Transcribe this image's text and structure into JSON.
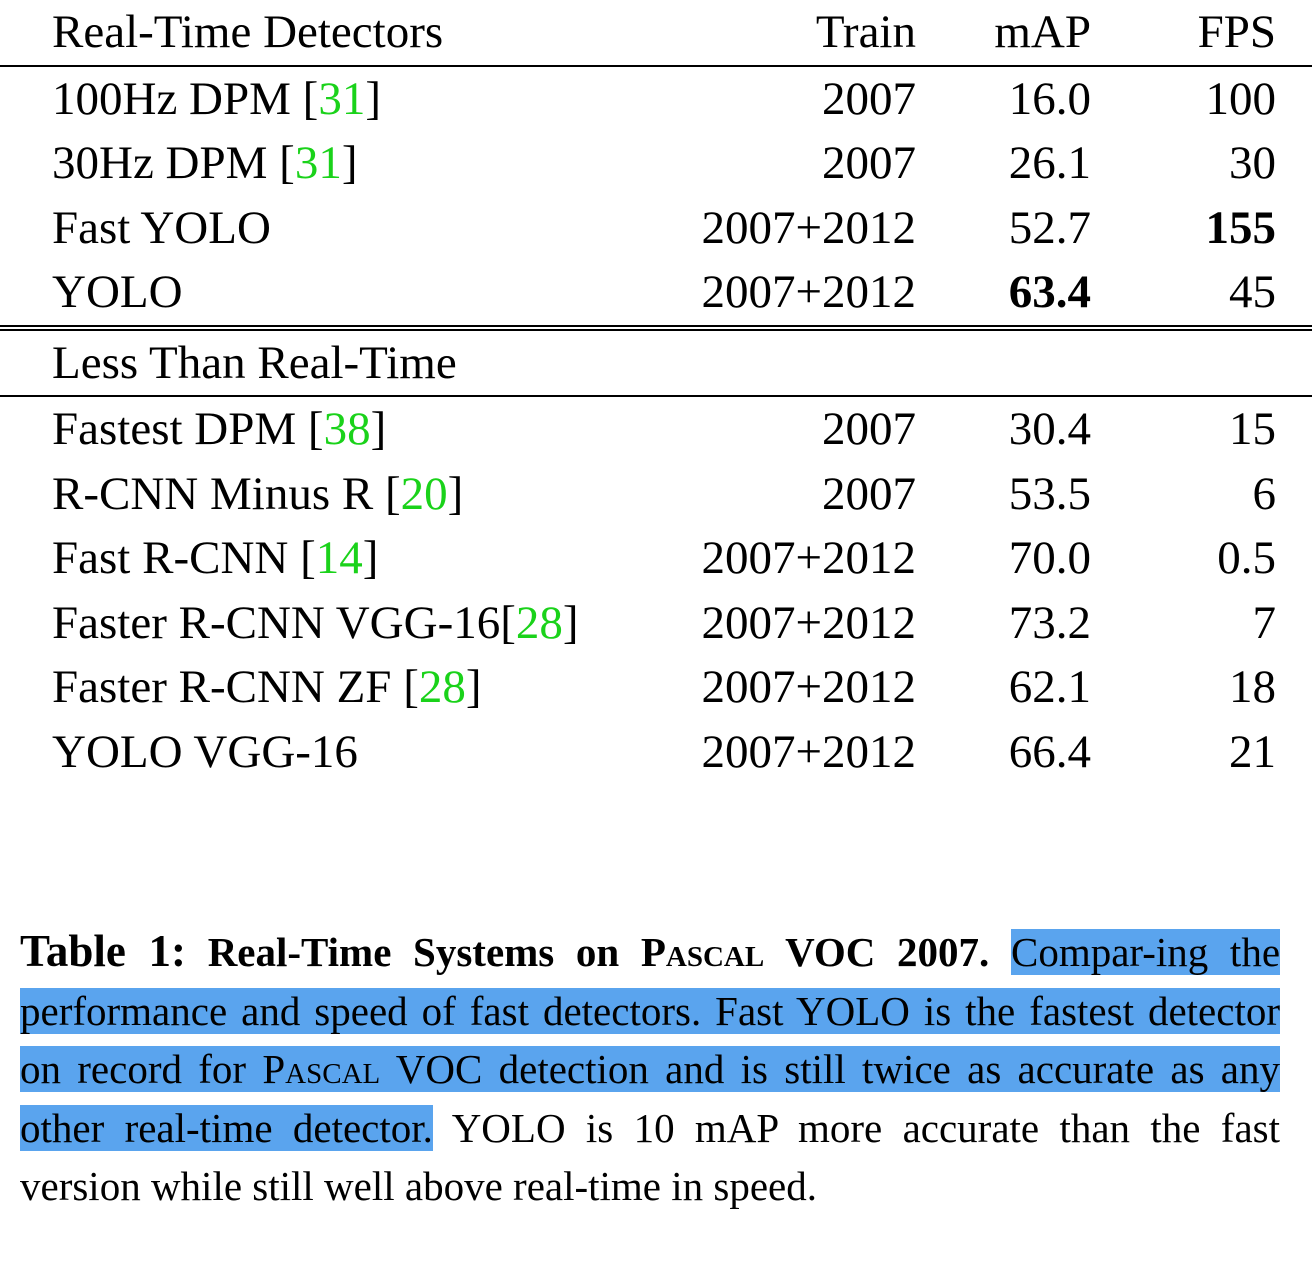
{
  "table": {
    "header": {
      "name": "Real-Time Detectors",
      "train": "Train",
      "map": "mAP",
      "fps": "FPS"
    },
    "realtime_rows": [
      {
        "name": "100Hz DPM [",
        "cite": "31",
        "close": "]",
        "train": "2007",
        "map": "16.0",
        "fps": "100"
      },
      {
        "name": "30Hz DPM [",
        "cite": "31",
        "close": "]",
        "train": "2007",
        "map": "26.1",
        "fps": "30"
      },
      {
        "name": "Fast YOLO",
        "cite": "",
        "close": "",
        "train": "2007+2012",
        "map": "52.7",
        "fps": "155"
      },
      {
        "name": "YOLO",
        "cite": "",
        "close": "",
        "train": "2007+2012",
        "map": "63.4",
        "fps": "45"
      }
    ],
    "section2_label": "Less Than Real-Time",
    "slow_rows": [
      {
        "name": "Fastest DPM [",
        "cite": "38",
        "close": "]",
        "train": "2007",
        "map": "30.4",
        "fps": "15"
      },
      {
        "name": "R-CNN Minus R [",
        "cite": "20",
        "close": "]",
        "train": "2007",
        "map": "53.5",
        "fps": "6"
      },
      {
        "name": "Fast R-CNN [",
        "cite": "14",
        "close": "]",
        "train": "2007+2012",
        "map": "70.0",
        "fps": "0.5"
      },
      {
        "name": "Faster R-CNN VGG-16[",
        "cite": "28",
        "close": "]",
        "train": "2007+2012",
        "map": "73.2",
        "fps": "7"
      },
      {
        "name": "Faster R-CNN ZF [",
        "cite": "28",
        "close": "]",
        "train": "2007+2012",
        "map": "62.1",
        "fps": "18"
      },
      {
        "name": "YOLO VGG-16",
        "cite": "",
        "close": "",
        "train": "2007+2012",
        "map": "66.4",
        "fps": "21"
      }
    ]
  },
  "caption": {
    "label": "Table 1:",
    "title_a": "Real-Time Systems on ",
    "title_sc": "Pascal",
    "title_b": " VOC 2007.",
    "hl_1": "Compar-ing the performance and speed of fast detectors. Fast YOLO is the fastest detector on record for ",
    "hl_sc": "Pascal",
    "hl_2": " VOC detection and is still twice as accurate as any other real-time detector.",
    "rest": " YOLO is 10 mAP more accurate than the fast version while still well above real-time in speed."
  }
}
